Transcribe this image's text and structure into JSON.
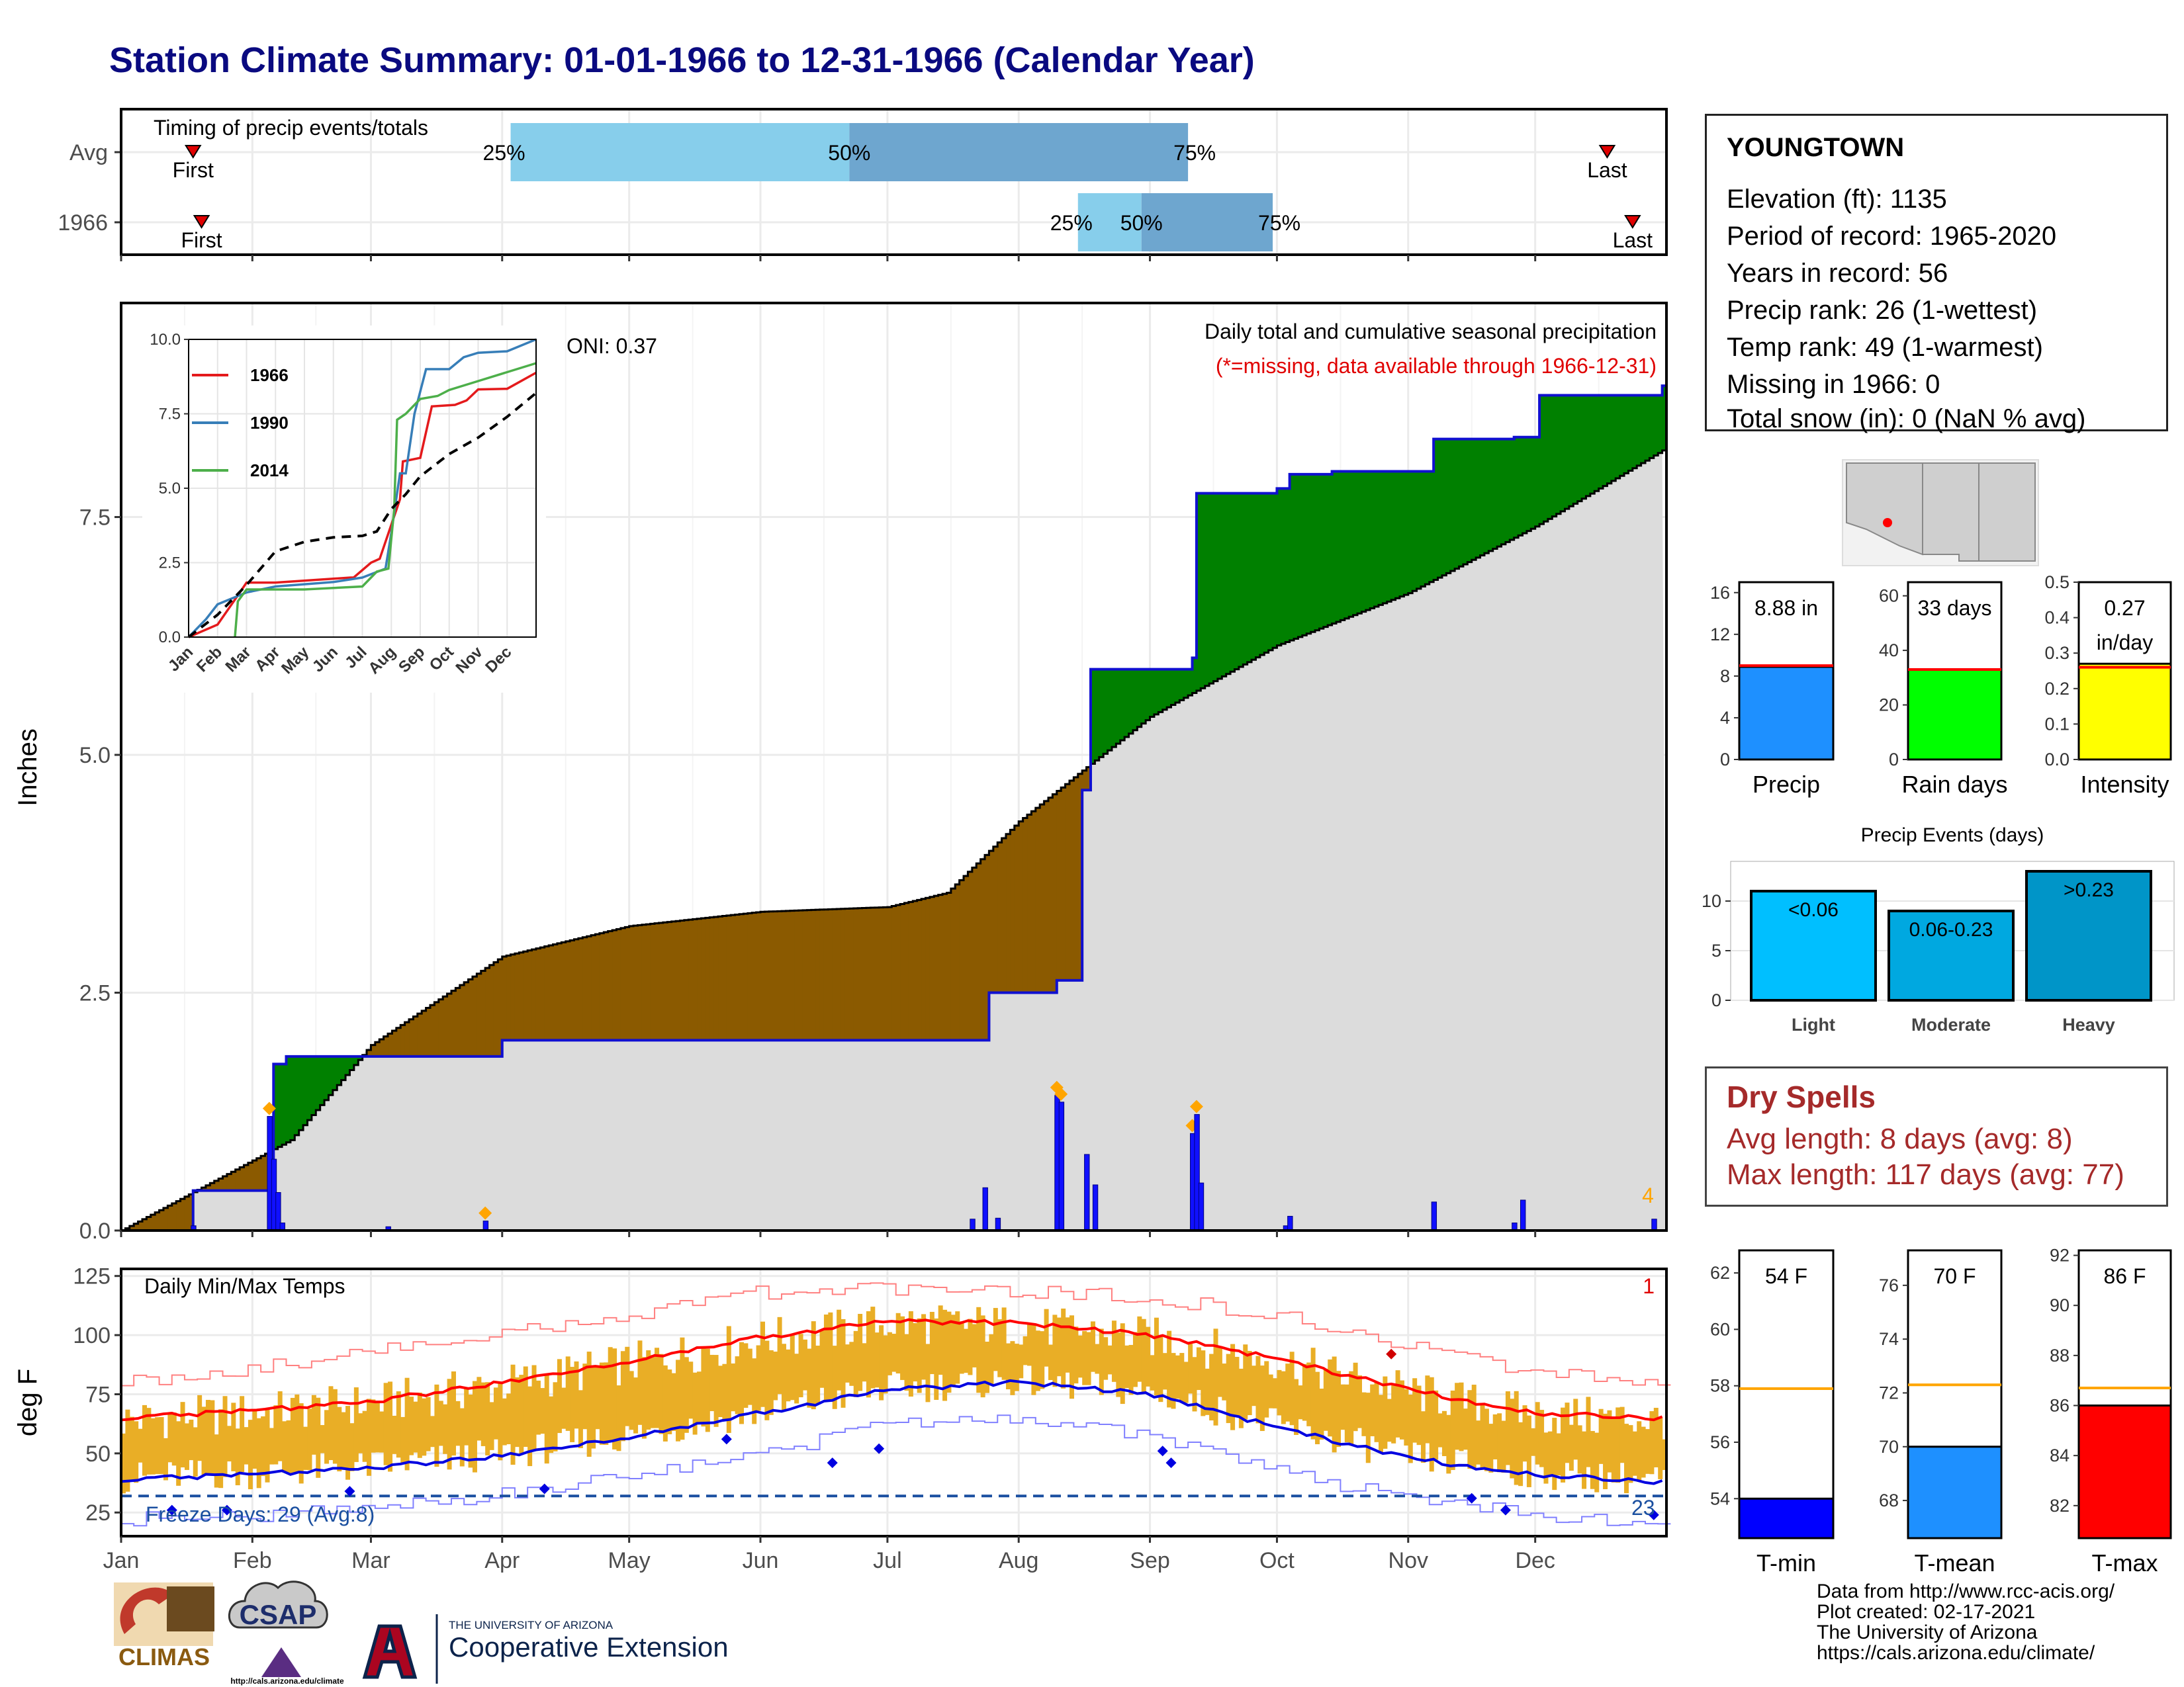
{
  "title": "Station Climate Summary: 01-01-1966 to 12-31-1966 (Calendar Year)",
  "timing": {
    "label": "Timing of precip events/totals",
    "rows": [
      {
        "name": "Avg",
        "first_day": 17,
        "q25_day": 92,
        "q50_day": 172,
        "q75_day": 252,
        "last_day": 351,
        "first_label": "First",
        "last_label": "Last",
        "q25_label": "25%",
        "q50_label": "50%",
        "q75_label": "75%"
      },
      {
        "name": "1966",
        "first_day": 19,
        "q25_day": 226,
        "q50_day": 241,
        "q75_day": 272,
        "last_day": 357,
        "first_label": "First",
        "last_label": "Last",
        "q25_label": "25%",
        "q50_label": "50%",
        "q75_label": "75%"
      }
    ]
  },
  "station": {
    "name": "YOUNGTOWN",
    "lines": [
      "Elevation (ft): 1135",
      "Period of record: 1965-2020",
      "Years in record: 56",
      "Precip rank: 26 (1-wettest)",
      "Temp rank: 49 (1-warmest)",
      "Missing in 1966: 0",
      "Total snow (in): 0 (NaN % avg)"
    ]
  },
  "precip_panel": {
    "ylabel": "Inches",
    "title": "Daily total and cumulative seasonal precipitation",
    "subtitle": "(*=missing, data available through 1966-12-31)",
    "oni": "ONI: 0.37",
    "corner_count": "4",
    "yticks": [
      "0.0",
      "2.5",
      "5.0",
      "7.5"
    ],
    "colors": {
      "observed": "#1010d0",
      "above": "#008000",
      "below": "#8b5a00",
      "normal": "#dcdcdc"
    }
  },
  "inset": {
    "yticks": [
      "0.0",
      "2.5",
      "5.0",
      "7.5",
      "10.0"
    ],
    "xticks": [
      "Jan",
      "Feb",
      "Mar",
      "Apr",
      "May",
      "Jun",
      "Jul",
      "Aug",
      "Sep",
      "Oct",
      "Nov",
      "Dec"
    ],
    "legend": [
      {
        "name": "1966",
        "color": "#e41a1c"
      },
      {
        "name": "1990",
        "color": "#377eb8"
      },
      {
        "name": "2014",
        "color": "#4daf4a"
      }
    ]
  },
  "temp_panel": {
    "ylabel": "deg F",
    "title": "Daily Min/Max Temps",
    "freeze_label": "Freeze Days: 29 (Avg:8)",
    "corner_top": "1",
    "corner_bottom": "23",
    "yticks": [
      "25",
      "50",
      "75",
      "100",
      "125"
    ]
  },
  "months": [
    "Jan",
    "Feb",
    "Mar",
    "Apr",
    "May",
    "Jun",
    "Jul",
    "Aug",
    "Sep",
    "Oct",
    "Nov",
    "Dec"
  ],
  "chart_data": [
    {
      "type": "area",
      "title": "Daily total and cumulative seasonal precipitation",
      "ylabel": "Inches",
      "ylim": [
        0,
        9.75
      ],
      "cumulative_observed": {
        "x": [
          "01-01",
          "01-18",
          "02-06",
          "02-09",
          "03-04",
          "04-01",
          "07-21",
          "07-25",
          "08-10",
          "08-16",
          "08-18",
          "09-11",
          "09-12",
          "10-01",
          "10-04",
          "10-14",
          "11-07",
          "11-26",
          "12-02",
          "12-31"
        ],
        "y": [
          0.0,
          0.42,
          1.75,
          1.83,
          1.83,
          2.0,
          2.0,
          2.5,
          2.63,
          4.63,
          5.9,
          6.02,
          7.75,
          7.8,
          7.95,
          7.98,
          8.32,
          8.34,
          8.78,
          8.88
        ]
      },
      "cumulative_normal": {
        "x": [
          "01-01",
          "02-10",
          "03-01",
          "04-01",
          "05-01",
          "06-01",
          "07-01",
          "07-15",
          "08-01",
          "08-15",
          "09-01",
          "10-01",
          "11-01",
          "12-01",
          "12-31"
        ],
        "y": [
          0.0,
          0.95,
          1.95,
          2.88,
          3.2,
          3.35,
          3.4,
          3.55,
          4.3,
          4.8,
          5.4,
          6.15,
          6.7,
          7.4,
          8.2
        ]
      },
      "daily_precip": {
        "x": [
          "01-18",
          "02-05",
          "02-06",
          "02-07",
          "02-08",
          "03-05",
          "03-28",
          "07-21",
          "07-24",
          "07-27",
          "08-10",
          "08-11",
          "08-17",
          "08-19",
          "09-11",
          "09-12",
          "09-13",
          "10-03",
          "10-04",
          "11-07",
          "11-26",
          "11-28",
          "12-29"
        ],
        "y": [
          0.05,
          1.2,
          0.75,
          0.4,
          0.08,
          0.04,
          0.1,
          0.12,
          0.45,
          0.13,
          1.42,
          1.35,
          0.8,
          0.48,
          1.02,
          1.22,
          0.5,
          0.05,
          0.15,
          0.3,
          0.08,
          0.32,
          0.12
        ]
      }
    },
    {
      "type": "line",
      "title": "Inset cumulative precipitation",
      "ylim": [
        0,
        10
      ],
      "series": [
        {
          "name": "1966",
          "x": [
            0,
            1,
            1.7,
            2,
            3,
            5.6,
            5.7,
            6.3,
            6.6,
            7.3,
            7.4,
            8,
            8.4,
            9.2,
            9.6,
            10,
            11,
            12
          ],
          "y": [
            0,
            0.42,
            1.4,
            1.83,
            1.83,
            2,
            2,
            2.5,
            2.63,
            4.63,
            5.9,
            6.02,
            7.75,
            7.8,
            7.95,
            8.32,
            8.34,
            8.88
          ]
        },
        {
          "name": "1990",
          "x": [
            0,
            0.6,
            1,
            2,
            3,
            5,
            6,
            6.8,
            7,
            7.3,
            7.5,
            7.8,
            8.2,
            9,
            9.5,
            10,
            11,
            11.5,
            12
          ],
          "y": [
            0,
            0.6,
            1.1,
            1.5,
            1.7,
            1.85,
            2.0,
            2.3,
            3.5,
            5.5,
            5.5,
            7.5,
            9.0,
            9.0,
            9.4,
            9.55,
            9.6,
            9.8,
            10.0
          ]
        },
        {
          "name": "2014",
          "x": [
            1.6,
            1.7,
            2,
            4,
            5,
            6,
            6.5,
            6.9,
            7.1,
            7.2,
            7.5,
            8,
            8.6,
            9,
            10,
            11,
            12
          ],
          "y": [
            0,
            1.2,
            1.6,
            1.6,
            1.65,
            1.7,
            2.2,
            2.3,
            4.3,
            7.3,
            7.5,
            8.0,
            8.1,
            8.3,
            8.6,
            8.9,
            9.2
          ]
        },
        {
          "name": "normal",
          "x": [
            0,
            1,
            2,
            3,
            4,
            5,
            6,
            6.5,
            7,
            7.5,
            8,
            9,
            10,
            11,
            12
          ],
          "y": [
            0,
            0.75,
            1.75,
            2.88,
            3.2,
            3.35,
            3.4,
            3.55,
            4.3,
            4.8,
            5.4,
            6.15,
            6.7,
            7.4,
            8.2
          ]
        }
      ]
    },
    {
      "type": "line",
      "title": "Daily Min/Max Temps",
      "ylabel": "deg F",
      "ylim": [
        15,
        128
      ],
      "series": [
        {
          "name": "normal max",
          "x": [
            "01-01",
            "02-01",
            "03-01",
            "04-01",
            "05-01",
            "06-01",
            "07-01",
            "08-01",
            "09-01",
            "10-01",
            "11-01",
            "12-01",
            "12-31"
          ],
          "y": [
            65,
            68,
            72,
            80,
            89,
            99,
            106,
            105,
            100,
            90,
            77,
            67,
            65
          ]
        },
        {
          "name": "normal min",
          "x": [
            "01-01",
            "02-01",
            "03-01",
            "04-01",
            "05-01",
            "06-01",
            "07-01",
            "08-01",
            "09-01",
            "10-01",
            "11-01",
            "12-01",
            "12-31"
          ],
          "y": [
            39,
            41,
            44,
            49,
            57,
            67,
            77,
            80,
            75,
            61,
            48,
            41,
            38
          ]
        },
        {
          "name": "record max",
          "x": [
            "01-01",
            "02-01",
            "03-01",
            "04-01",
            "05-01",
            "06-01",
            "07-01",
            "08-01",
            "09-01",
            "10-01",
            "11-01",
            "12-01",
            "12-31"
          ],
          "y": [
            80,
            86,
            93,
            100,
            109,
            118,
            120,
            118,
            116,
            108,
            95,
            84,
            80
          ]
        },
        {
          "name": "record min",
          "x": [
            "01-01",
            "02-01",
            "03-01",
            "04-01",
            "05-01",
            "06-01",
            "07-01",
            "08-01",
            "09-01",
            "10-01",
            "11-01",
            "12-01",
            "12-31"
          ],
          "y": [
            22,
            24,
            27,
            33,
            40,
            50,
            62,
            66,
            57,
            43,
            30,
            24,
            21
          ]
        }
      ]
    },
    {
      "type": "bar",
      "title": "Precip",
      "ylim": [
        0,
        17
      ],
      "values": [
        8.88
      ],
      "value_label": "8.88 in",
      "avg": 9.0,
      "yticks": [
        "0",
        "4",
        "8",
        "12",
        "16"
      ],
      "label": "Precip",
      "color": "#1e90ff"
    },
    {
      "type": "bar",
      "title": "Rain days",
      "ylim": [
        0,
        65
      ],
      "values": [
        33
      ],
      "value_label": "33 days",
      "avg": 33,
      "yticks": [
        "0",
        "20",
        "40",
        "60"
      ],
      "label": "Rain days",
      "color": "#00ff00"
    },
    {
      "type": "bar",
      "title": "Intensity",
      "ylim": [
        0,
        0.5
      ],
      "values": [
        0.27
      ],
      "value_label": "0.27",
      "value_label2": "in/day",
      "avg": 0.26,
      "yticks": [
        "0.0",
        "0.1",
        "0.2",
        "0.3",
        "0.4",
        "0.5"
      ],
      "label": "Intensity",
      "color": "#ffff00"
    },
    {
      "type": "bar",
      "title": "Precip Events (days)",
      "categories": [
        "Light",
        "Moderate",
        "Heavy"
      ],
      "values": [
        11,
        9,
        13
      ],
      "bar_labels": [
        "<0.06",
        "0.06-0.23",
        ">0.23"
      ],
      "colors": [
        "#00bfff",
        "#00a8e0",
        "#0095c8"
      ],
      "yticks": [
        "0",
        "5",
        "10"
      ],
      "ylim": [
        0,
        14
      ]
    },
    {
      "type": "bar",
      "title": "T-min",
      "ylim": [
        52.6,
        62.8
      ],
      "values": [
        54
      ],
      "value_label": "54 F",
      "avg": 57.9,
      "yticks": [
        "54",
        "56",
        "58",
        "60",
        "62"
      ],
      "label": "T-min",
      "color": "#0000ff"
    },
    {
      "type": "bar",
      "title": "T-mean",
      "ylim": [
        66.6,
        77.3
      ],
      "values": [
        70
      ],
      "value_label": "70 F",
      "avg": 72.3,
      "yticks": [
        "68",
        "70",
        "72",
        "74",
        "76"
      ],
      "label": "T-mean",
      "color": "#1e90ff"
    },
    {
      "type": "bar",
      "title": "T-max",
      "ylim": [
        80.7,
        92.2
      ],
      "values": [
        86
      ],
      "value_label": "86 F",
      "avg": 86.7,
      "yticks": [
        "82",
        "84",
        "86",
        "88",
        "90",
        "92"
      ],
      "label": "T-max",
      "color": "#ff0000"
    }
  ],
  "dry_spells": {
    "title": "Dry Spells",
    "avg_line": "Avg length: 8 days (avg: 8)",
    "max_line": "Max length: 117 days (avg: 77)"
  },
  "logos": {
    "climas": "CLIMAS",
    "csap": "CSAP",
    "csap_url": "http://cals.arizona.edu/climate",
    "ua_small": "THE UNIVERSITY OF ARIZONA",
    "ua_big": "Cooperative Extension"
  },
  "credits": [
    "Data from http://www.rcc-acis.org/",
    "Plot created: 02-17-2021",
    "The University of Arizona",
    "https://cals.arizona.edu/climate/"
  ]
}
